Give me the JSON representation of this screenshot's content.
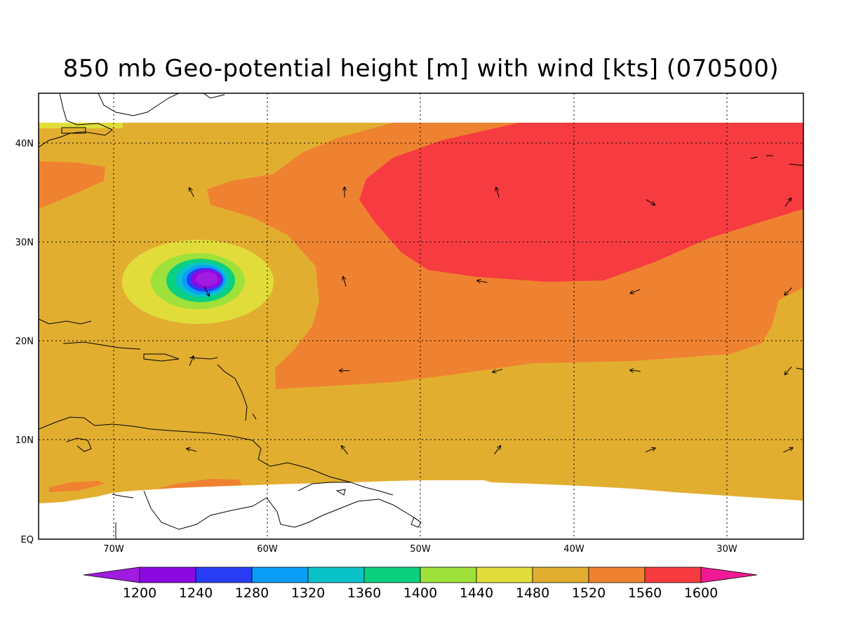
{
  "title": "850 mb Geo-potential height [m] with wind [kts] (070500)",
  "lat_labels": [
    "40N",
    "30N",
    "20N",
    "10N",
    "EQ"
  ],
  "lon_labels": [
    "70W",
    "60W",
    "50W",
    "40W",
    "30W"
  ],
  "colorbar": {
    "labels": [
      "1200",
      "1240",
      "1280",
      "1320",
      "1360",
      "1400",
      "1440",
      "1480",
      "1520",
      "1560",
      "1600"
    ],
    "colors": [
      "#a11be0",
      "#8a0ae0",
      "#2a3df6",
      "#0a9ef6",
      "#0ac3c9",
      "#0ad07f",
      "#9ee13a",
      "#e1dc3a",
      "#e2ae30",
      "#ef8230",
      "#f63c40",
      "#f01a96"
    ]
  },
  "chart_data": {
    "type": "heatmap",
    "variable": "850 mb Geo-potential height [m] with wind [kts]",
    "date_code": "070500",
    "domain_lon": [
      -75,
      -25
    ],
    "domain_lat": [
      0,
      45
    ],
    "data_lat_top": 42,
    "contour_levels": [
      1200,
      1240,
      1280,
      1320,
      1360,
      1400,
      1440,
      1480,
      1520,
      1560,
      1600
    ],
    "features": [
      {
        "kind": "low",
        "center_lon": -64,
        "center_lat": 26,
        "min_level": 1200
      },
      {
        "kind": "high",
        "center_lon": -40,
        "center_lat": 35,
        "level": 1600
      }
    ],
    "wind_vectors": [
      {
        "lon": -65,
        "lat": 35,
        "u": -0.5,
        "v": 1
      },
      {
        "lon": -55,
        "lat": 35,
        "u": 0,
        "v": 1
      },
      {
        "lon": -45,
        "lat": 35,
        "u": -0.3,
        "v": 1
      },
      {
        "lon": -35,
        "lat": 34,
        "u": 1,
        "v": -0.6
      },
      {
        "lon": -26,
        "lat": 34,
        "u": 0.7,
        "v": 1
      },
      {
        "lon": -55,
        "lat": 26,
        "u": -0.3,
        "v": 1
      },
      {
        "lon": -46,
        "lat": 26,
        "u": -1,
        "v": 0.2
      },
      {
        "lon": -36,
        "lat": 25,
        "u": -1,
        "v": -0.4
      },
      {
        "lon": -26,
        "lat": 25,
        "u": -0.7,
        "v": -0.7
      },
      {
        "lon": -65,
        "lat": 18,
        "u": 0.4,
        "v": 1
      },
      {
        "lon": -55,
        "lat": 17,
        "u": -1,
        "v": 0
      },
      {
        "lon": -45,
        "lat": 17,
        "u": -1,
        "v": -0.3
      },
      {
        "lon": -36,
        "lat": 17,
        "u": -1,
        "v": 0.1
      },
      {
        "lon": -26,
        "lat": 17,
        "u": -0.6,
        "v": -0.7
      },
      {
        "lon": -65,
        "lat": 9,
        "u": -1,
        "v": 0.3
      },
      {
        "lon": -55,
        "lat": 9,
        "u": -0.6,
        "v": 0.8
      },
      {
        "lon": -45,
        "lat": 9,
        "u": 0.6,
        "v": 0.8
      },
      {
        "lon": -35,
        "lat": 9,
        "u": 1,
        "v": 0.4
      },
      {
        "lon": -26,
        "lat": 9,
        "u": 1,
        "v": 0.5
      },
      {
        "lon": -64,
        "lat": 25,
        "u": 0.5,
        "v": -1
      }
    ]
  }
}
